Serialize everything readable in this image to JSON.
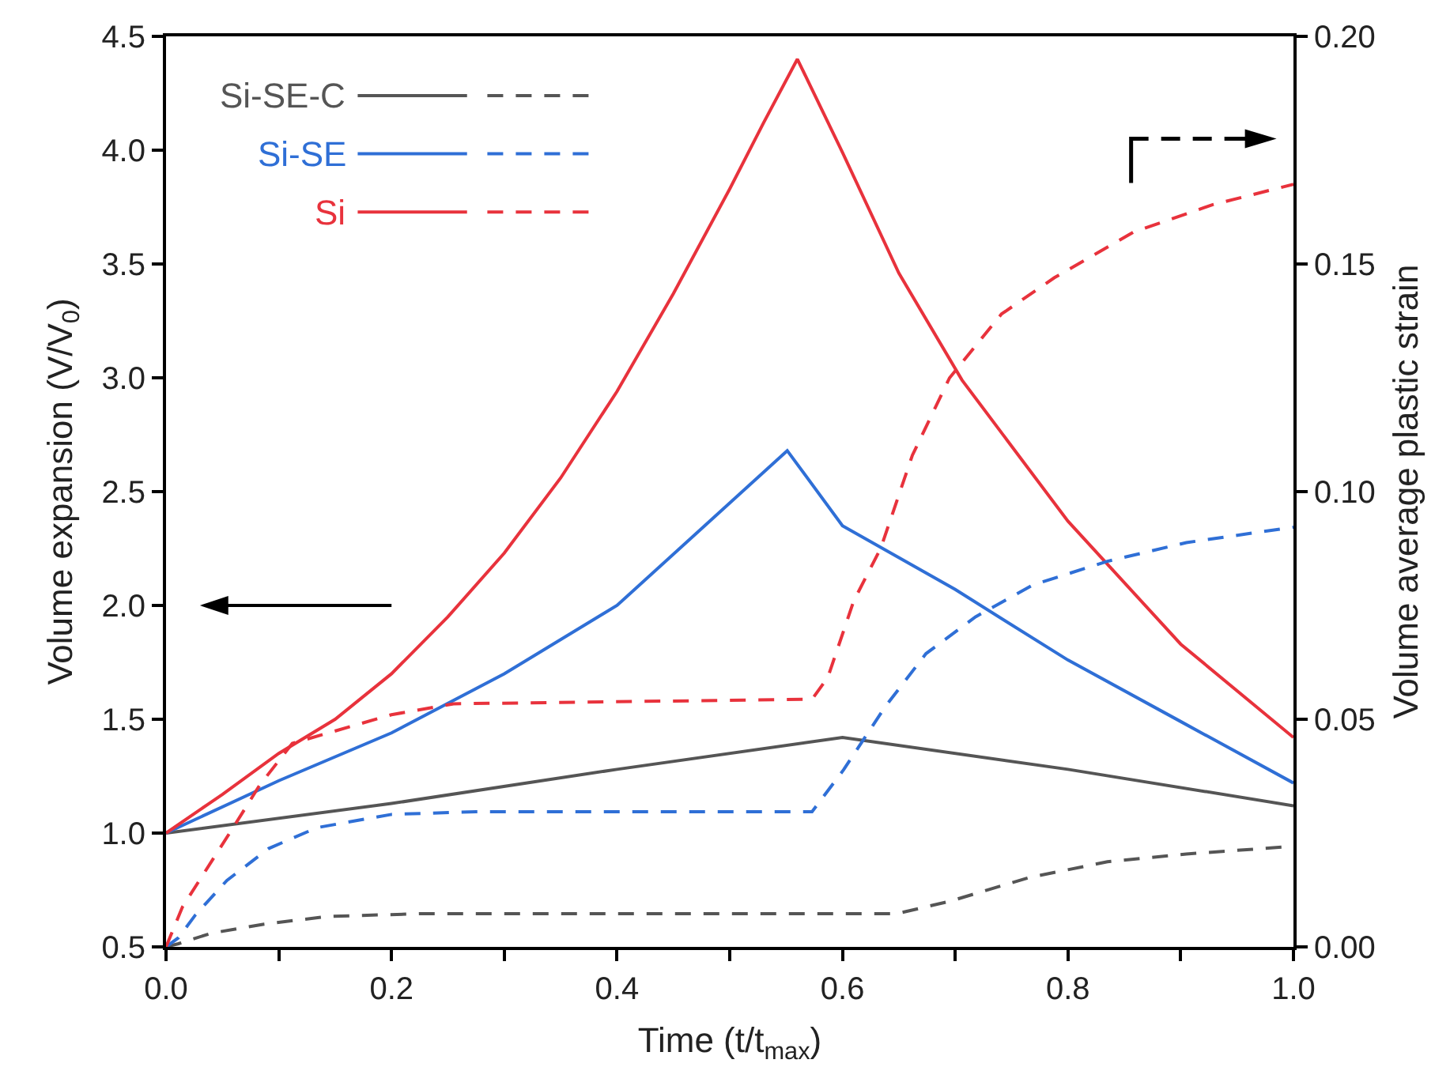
{
  "chart_data": {
    "type": "line",
    "xlabel": "Time (t/t$_{max}$)",
    "ylabel": "Volume expansion (V/V$_{0}$)",
    "y2label": "Volume average plastic strain",
    "xlim": [
      0,
      1
    ],
    "xticks": [
      {
        "value": 0,
        "label": "0.0"
      },
      {
        "value": 0.1,
        "label": null
      },
      {
        "value": 0.2,
        "label": "0.2"
      },
      {
        "value": 0.3,
        "label": null
      },
      {
        "value": 0.4,
        "label": "0.4"
      },
      {
        "value": 0.5,
        "label": null
      },
      {
        "value": 0.6,
        "label": "0.6"
      },
      {
        "value": 0.7,
        "label": null
      },
      {
        "value": 0.8,
        "label": "0.8"
      },
      {
        "value": 0.9,
        "label": null
      },
      {
        "value": 1,
        "label": "1.0"
      }
    ],
    "ylim": [
      0.5,
      4.5
    ],
    "yticks": [
      0.5,
      {
        "value": 1,
        "label": "1.0"
      },
      1.5,
      {
        "value": 2,
        "label": "2.0"
      },
      2.5,
      {
        "value": 3,
        "label": "3.0"
      },
      3.5,
      {
        "value": 4,
        "label": "4.0"
      },
      4.5
    ],
    "y2lim": [
      0,
      0.2
    ],
    "y2ticks": [
      {
        "value": 0,
        "label": "0.00"
      },
      0.05,
      {
        "value": 0.1,
        "label": "0.10"
      },
      0.15,
      {
        "value": 0.2,
        "label": "0.20"
      }
    ],
    "grid": false,
    "legend": "top left",
    "marker": "none",
    "series": [
      {
        "name": "Si-SE-C",
        "color": "#555555",
        "line_style": "solid",
        "x": [
          0,
          0.2,
          0.4,
          0.6,
          0.8,
          1.0
        ],
        "values": [
          1.0,
          1.13,
          1.28,
          1.42,
          1.28,
          1.12
        ]
      },
      {
        "name": "Si-SE",
        "color": "#2f6fd6",
        "line_style": "solid",
        "x": [
          0,
          0.1,
          0.2,
          0.3,
          0.4,
          0.551,
          0.6,
          0.7,
          0.8,
          0.9,
          1.0
        ],
        "values": [
          1.0,
          1.23,
          1.44,
          1.7,
          2.0,
          2.68,
          2.35,
          2.07,
          1.76,
          1.49,
          1.22
        ]
      },
      {
        "name": "Si",
        "color": "#e8323c",
        "line_style": "solid",
        "x": [
          0,
          0.05,
          0.1,
          0.15,
          0.2,
          0.25,
          0.3,
          0.35,
          0.4,
          0.45,
          0.5,
          0.53,
          0.56,
          0.6,
          0.65,
          0.706,
          0.8,
          0.9,
          1.0
        ],
        "values": [
          1.0,
          1.17,
          1.35,
          1.5,
          1.7,
          1.95,
          2.23,
          2.56,
          2.94,
          3.37,
          3.83,
          4.12,
          4.4,
          3.99,
          3.46,
          2.99,
          2.37,
          1.83,
          1.42
        ]
      },
      {
        "color": "#555555",
        "line_style": "dashed",
        "axis": "y2",
        "x": [
          0,
          0.011,
          0.04,
          0.087,
          0.144,
          0.228,
          0.648,
          0.695,
          0.765,
          0.835,
          0.905,
          1.0
        ],
        "values": [
          0,
          0.0007,
          0.003,
          0.005,
          0.0067,
          0.0073,
          0.0073,
          0.01,
          0.0152,
          0.0187,
          0.0204,
          0.0221
        ]
      },
      {
        "color": "#2f6fd6",
        "line_style": "dashed",
        "axis": "y2",
        "x": [
          0,
          0.011,
          0.026,
          0.054,
          0.091,
          0.134,
          0.2,
          0.275,
          0.573,
          0.601,
          0.638,
          0.674,
          0.718,
          0.769,
          0.835,
          0.905,
          1.0
        ],
        "values": [
          0,
          0.002,
          0.007,
          0.0146,
          0.0216,
          0.0262,
          0.0291,
          0.0297,
          0.0297,
          0.0389,
          0.0528,
          0.0644,
          0.0725,
          0.0795,
          0.0847,
          0.0888,
          0.0922
        ]
      },
      {
        "color": "#e8323c",
        "line_style": "dashed",
        "axis": "y2",
        "x": [
          0,
          0.0146,
          0.059,
          0.083,
          0.112,
          0.2,
          0.255,
          0.573,
          0.587,
          0.61,
          0.634,
          0.662,
          0.695,
          0.741,
          0.788,
          0.858,
          0.928,
          1.0
        ],
        "values": [
          0,
          0.0088,
          0.026,
          0.0355,
          0.0447,
          0.051,
          0.0534,
          0.0544,
          0.0592,
          0.076,
          0.0876,
          0.108,
          0.125,
          0.139,
          0.147,
          0.157,
          0.163,
          0.1675
        ]
      }
    ]
  }
}
